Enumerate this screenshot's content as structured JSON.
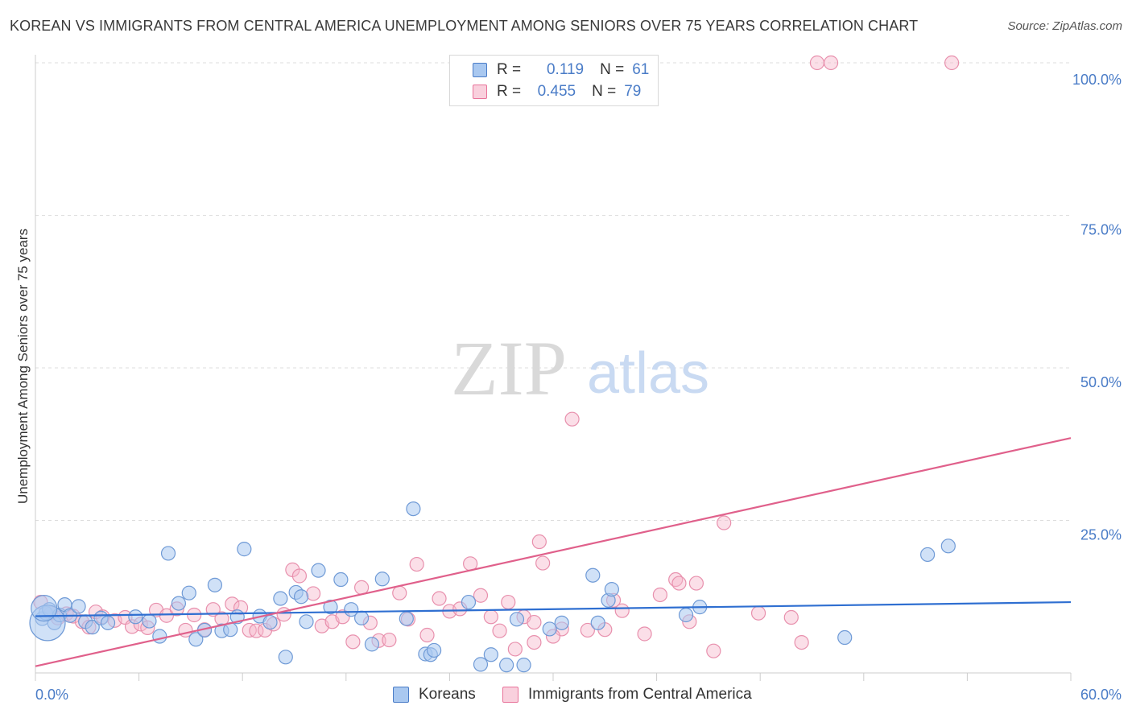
{
  "title": "KOREAN VS IMMIGRANTS FROM CENTRAL AMERICA UNEMPLOYMENT AMONG SENIORS OVER 75 YEARS CORRELATION CHART",
  "source": "Source: ZipAtlas.com",
  "watermark": {
    "zip": "ZIP",
    "atlas": "atlas"
  },
  "colors": {
    "blue": "#4a7cc7",
    "blue_fill": "#a9c8f0",
    "pink": "#e8739a",
    "pink_fill": "#f6b8cb",
    "grid": "#dddddd"
  },
  "legend": {
    "rows": [
      {
        "r_label": "R =",
        "r_value": "0.119",
        "n_label": "N =",
        "n_value": "61"
      },
      {
        "r_label": "R =",
        "r_value": "0.455",
        "n_label": "N =",
        "n_value": "79"
      }
    ]
  },
  "chart_data": {
    "type": "scatter",
    "title": "KOREAN VS IMMIGRANTS FROM CENTRAL AMERICA UNEMPLOYMENT AMONG SENIORS OVER 75 YEARS CORRELATION CHART",
    "xlabel": "",
    "ylabel": "Unemployment Among Seniors over 75 years",
    "xlim": [
      0,
      60
    ],
    "ylim": [
      0,
      100
    ],
    "x_tick_labels": [
      "0.0%",
      "60.0%"
    ],
    "y_ticks": [
      25,
      50,
      75,
      100
    ],
    "y_tick_labels": [
      "25.0%",
      "50.0%",
      "75.0%",
      "100.0%"
    ],
    "grid": true,
    "legend_position": "bottom-center",
    "series": [
      {
        "name": "Koreans",
        "color": "#4a7cc7",
        "trend": {
          "x": [
            0,
            60
          ],
          "y": [
            9.3,
            11.6
          ]
        },
        "points": [
          [
            0.4,
            8.9
          ],
          [
            0.6,
            9.8
          ],
          [
            0.8,
            10.4
          ],
          [
            1.1,
            8.2
          ],
          [
            1.4,
            9.5
          ],
          [
            1.7,
            11.2
          ],
          [
            2.0,
            9.4
          ],
          [
            2.5,
            10.9
          ],
          [
            2.9,
            8.4
          ],
          [
            3.3,
            7.5
          ],
          [
            3.8,
            9.0
          ],
          [
            4.2,
            8.2
          ],
          [
            5.8,
            9.2
          ],
          [
            6.6,
            8.5
          ],
          [
            7.2,
            6.0
          ],
          [
            7.7,
            19.6
          ],
          [
            8.3,
            11.4
          ],
          [
            8.9,
            13.1
          ],
          [
            9.3,
            5.5
          ],
          [
            9.8,
            7.0
          ],
          [
            10.4,
            14.4
          ],
          [
            10.8,
            6.9
          ],
          [
            11.3,
            7.1
          ],
          [
            11.7,
            9.2
          ],
          [
            12.1,
            20.3
          ],
          [
            13.0,
            9.3
          ],
          [
            13.6,
            8.3
          ],
          [
            14.2,
            12.2
          ],
          [
            14.5,
            2.6
          ],
          [
            15.1,
            13.2
          ],
          [
            15.4,
            12.5
          ],
          [
            15.7,
            8.4
          ],
          [
            16.4,
            16.8
          ],
          [
            17.1,
            10.8
          ],
          [
            17.7,
            15.3
          ],
          [
            18.3,
            10.4
          ],
          [
            18.9,
            9.0
          ],
          [
            19.5,
            4.7
          ],
          [
            20.1,
            15.4
          ],
          [
            21.5,
            8.9
          ],
          [
            21.9,
            26.9
          ],
          [
            22.6,
            3.1
          ],
          [
            22.9,
            3.0
          ],
          [
            23.1,
            3.7
          ],
          [
            25.1,
            11.6
          ],
          [
            25.8,
            1.4
          ],
          [
            26.4,
            3.0
          ],
          [
            27.3,
            1.3
          ],
          [
            27.9,
            8.8
          ],
          [
            28.3,
            1.3
          ],
          [
            29.8,
            7.2
          ],
          [
            30.5,
            8.2
          ],
          [
            32.3,
            16.0
          ],
          [
            32.6,
            8.2
          ],
          [
            33.2,
            11.9
          ],
          [
            33.4,
            13.7
          ],
          [
            37.7,
            9.5
          ],
          [
            38.5,
            10.8
          ],
          [
            46.9,
            5.8
          ],
          [
            51.7,
            19.4
          ],
          [
            52.9,
            20.8
          ]
        ],
        "large_points": [
          [
            0.7,
            8.2,
            22
          ],
          [
            0.5,
            10.6,
            16
          ]
        ]
      },
      {
        "name": "Immigrants from Central America",
        "color": "#e8739a",
        "trend": {
          "x": [
            0,
            60
          ],
          "y": [
            1.1,
            38.5
          ]
        },
        "points": [
          [
            0.3,
            11.6
          ],
          [
            0.9,
            9.8
          ],
          [
            1.3,
            9.0
          ],
          [
            1.8,
            9.7
          ],
          [
            2.2,
            9.3
          ],
          [
            2.7,
            8.4
          ],
          [
            3.1,
            7.5
          ],
          [
            3.5,
            10.0
          ],
          [
            3.9,
            9.2
          ],
          [
            4.6,
            8.6
          ],
          [
            5.2,
            9.1
          ],
          [
            5.6,
            7.6
          ],
          [
            6.1,
            8.0
          ],
          [
            6.5,
            7.4
          ],
          [
            7.0,
            10.3
          ],
          [
            7.6,
            9.4
          ],
          [
            8.2,
            10.5
          ],
          [
            8.7,
            7.0
          ],
          [
            9.2,
            9.5
          ],
          [
            9.8,
            7.1
          ],
          [
            10.3,
            10.4
          ],
          [
            10.8,
            8.9
          ],
          [
            11.4,
            11.3
          ],
          [
            11.9,
            10.7
          ],
          [
            12.4,
            7.0
          ],
          [
            12.8,
            6.9
          ],
          [
            13.3,
            7.0
          ],
          [
            13.8,
            8.0
          ],
          [
            14.4,
            9.6
          ],
          [
            14.9,
            16.9
          ],
          [
            15.3,
            15.9
          ],
          [
            16.1,
            13.0
          ],
          [
            16.6,
            7.7
          ],
          [
            17.2,
            8.4
          ],
          [
            17.8,
            9.2
          ],
          [
            18.4,
            5.1
          ],
          [
            18.9,
            14.0
          ],
          [
            19.4,
            8.2
          ],
          [
            19.9,
            5.3
          ],
          [
            20.5,
            5.4
          ],
          [
            21.1,
            13.1
          ],
          [
            21.6,
            8.8
          ],
          [
            22.1,
            17.8
          ],
          [
            22.7,
            6.2
          ],
          [
            23.4,
            12.2
          ],
          [
            24.0,
            10.1
          ],
          [
            24.6,
            10.5
          ],
          [
            25.2,
            17.9
          ],
          [
            25.8,
            12.7
          ],
          [
            26.4,
            9.2
          ],
          [
            26.9,
            6.9
          ],
          [
            27.4,
            11.6
          ],
          [
            27.8,
            3.9
          ],
          [
            28.3,
            9.2
          ],
          [
            28.9,
            8.3
          ],
          [
            29.2,
            21.5
          ],
          [
            29.4,
            18.0
          ],
          [
            30.5,
            7.2
          ],
          [
            31.1,
            41.6
          ],
          [
            32.0,
            7.0
          ],
          [
            33.0,
            7.1
          ],
          [
            33.5,
            11.9
          ],
          [
            34.0,
            10.2
          ],
          [
            35.3,
            6.4
          ],
          [
            36.2,
            12.8
          ],
          [
            37.1,
            15.3
          ],
          [
            37.3,
            14.7
          ],
          [
            37.9,
            8.4
          ],
          [
            38.3,
            14.7
          ],
          [
            39.3,
            3.6
          ],
          [
            39.9,
            24.6
          ],
          [
            41.9,
            9.8
          ],
          [
            43.8,
            9.1
          ],
          [
            44.4,
            5.0
          ],
          [
            45.3,
            100.0
          ],
          [
            46.1,
            100.0
          ],
          [
            53.1,
            100.0
          ],
          [
            28.9,
            5.0
          ],
          [
            30.0,
            6.0
          ]
        ],
        "large_points": []
      }
    ]
  }
}
